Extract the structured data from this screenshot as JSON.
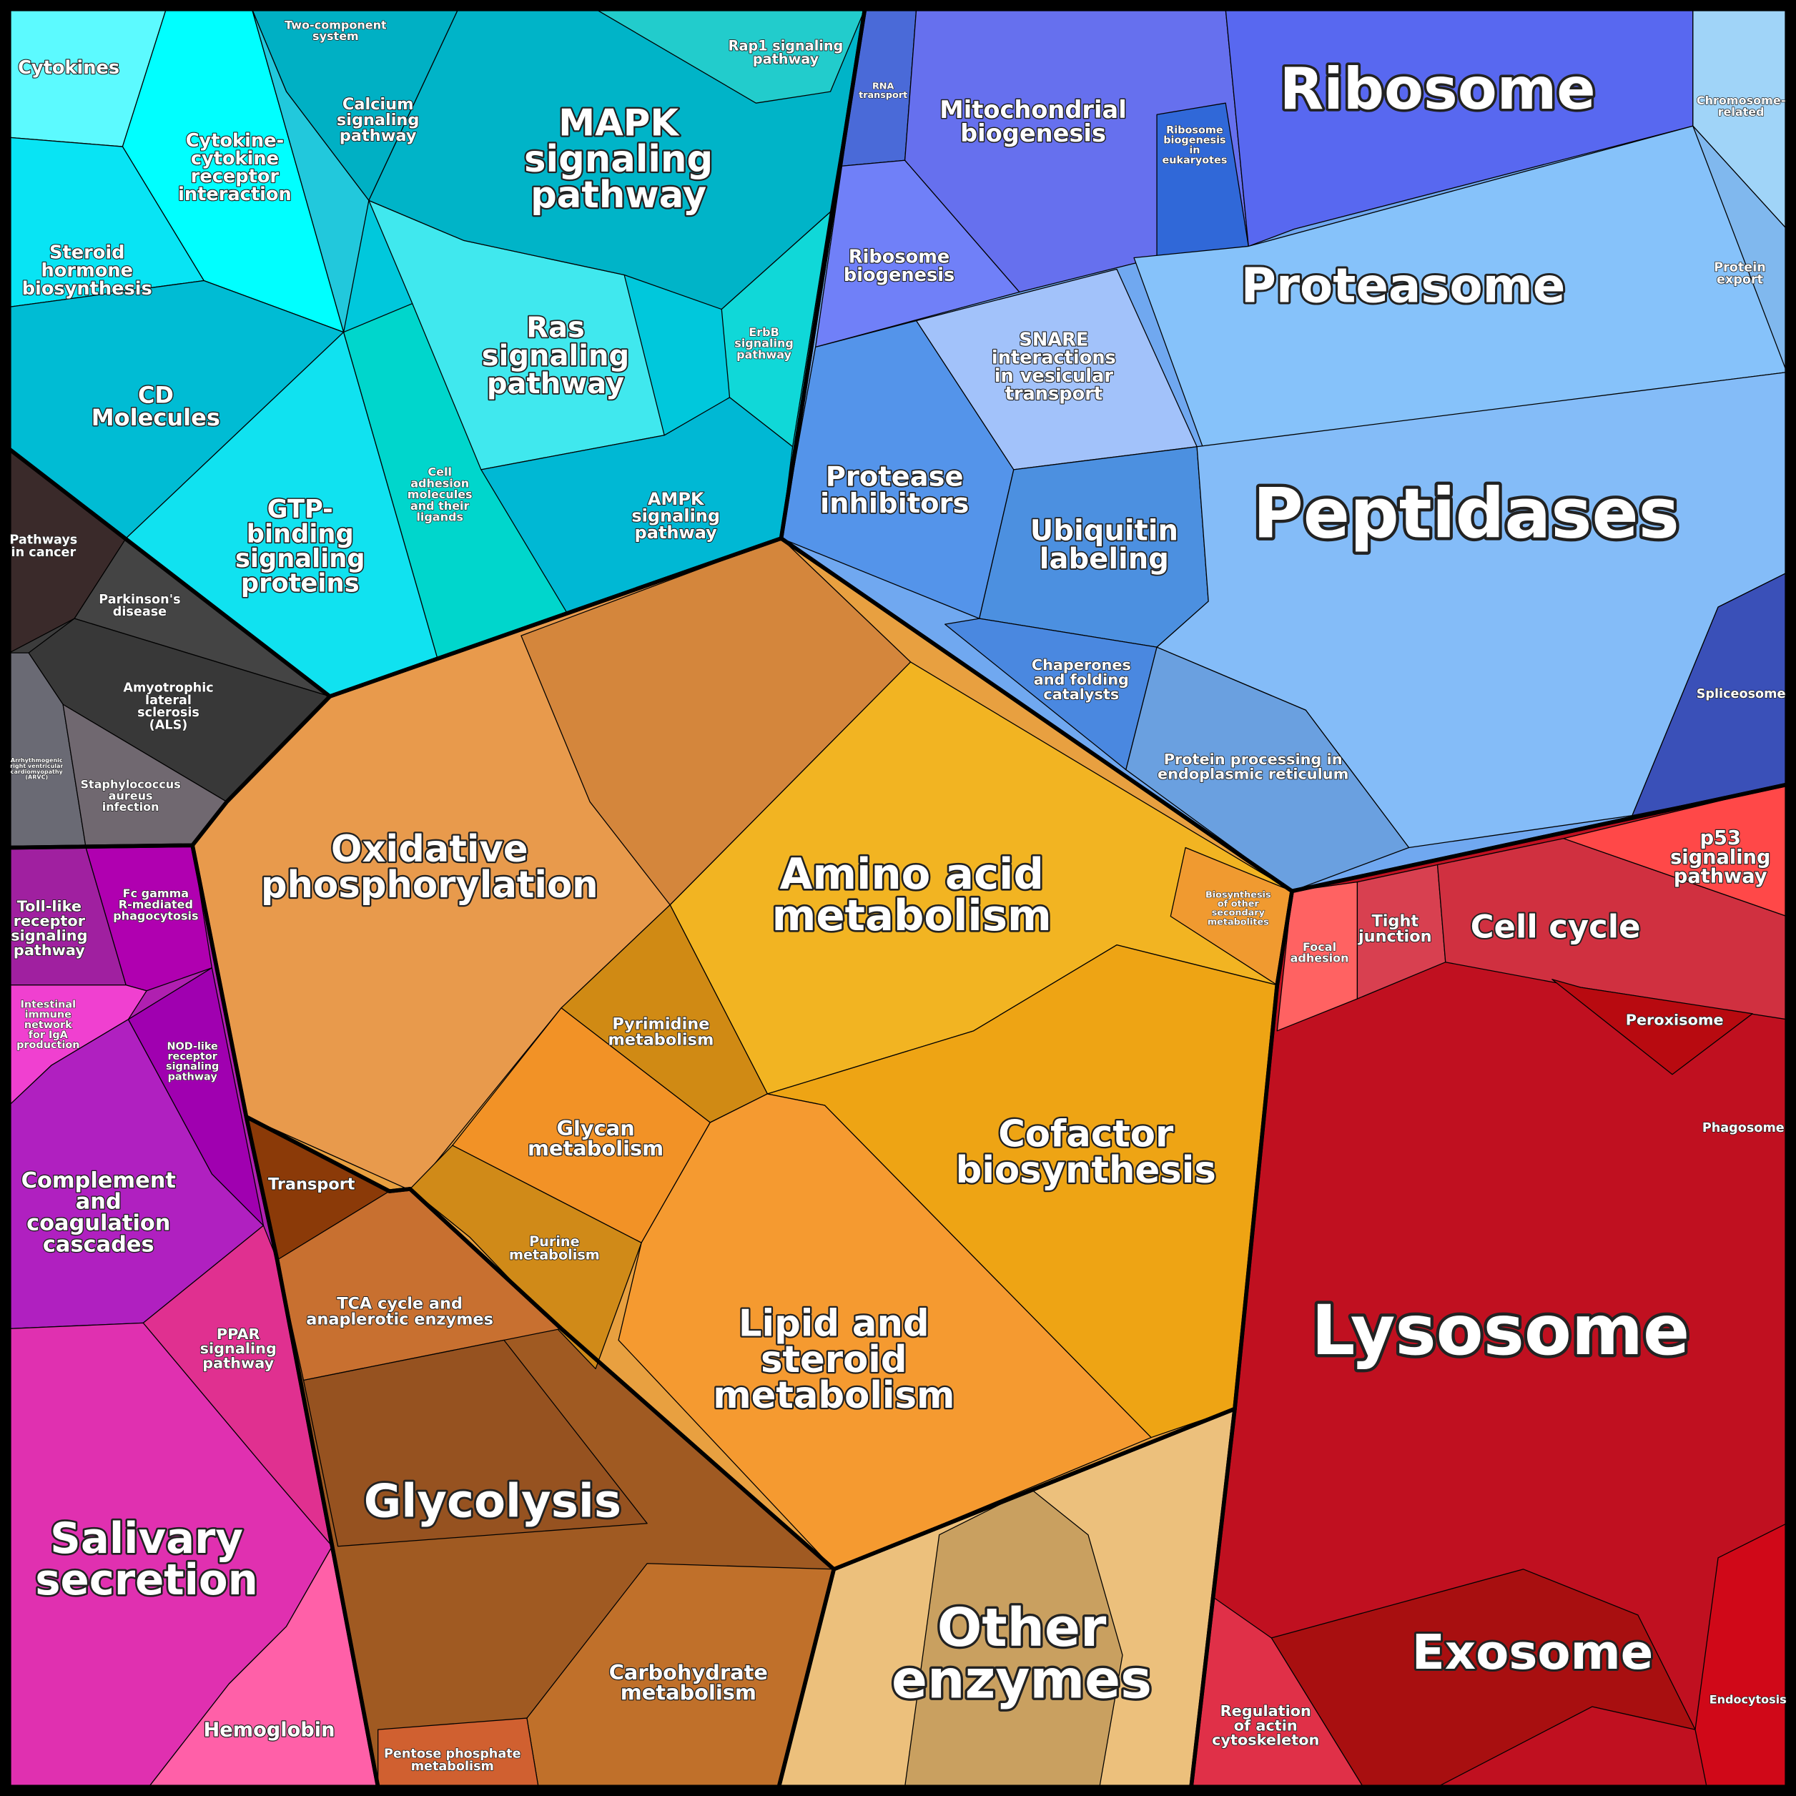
{
  "cells": [
    {
      "lines": [
        "Cytokines"
      ]
    },
    {
      "lines": [
        "Cytokine-",
        "cytokine",
        "receptor",
        "interaction"
      ]
    },
    {
      "lines": [
        "Two-component",
        "system"
      ]
    },
    {
      "lines": [
        "Calcium",
        "signaling",
        "pathway"
      ]
    },
    {
      "lines": [
        "MAPK",
        "signaling",
        "pathway"
      ]
    },
    {
      "lines": [
        "Rap1 signaling",
        "pathway"
      ]
    },
    {
      "lines": [
        "Steroid",
        "hormone",
        "biosynthesis"
      ]
    },
    {
      "lines": [
        "CD",
        "Molecules"
      ]
    },
    {
      "lines": [
        "Ras",
        "signaling",
        "pathway"
      ]
    },
    {
      "lines": [
        "ErbB",
        "signaling",
        "pathway"
      ]
    },
    {
      "lines": [
        "Cell",
        "adhesion",
        "molecules",
        "and their",
        "ligands"
      ]
    },
    {
      "lines": [
        "GTP-",
        "binding",
        "signaling",
        "proteins"
      ]
    },
    {
      "lines": [
        "AMPK",
        "signaling",
        "pathway"
      ]
    },
    {
      "lines": [
        "Pathways",
        "in cancer"
      ]
    },
    {
      "lines": [
        "Parkinson's",
        "disease"
      ]
    },
    {
      "lines": [
        "Amyotrophic",
        "lateral",
        "sclerosis",
        "(ALS)"
      ]
    },
    {
      "lines": [
        "Arrhythmogenic",
        "right ventricular",
        "cardiomyopathy",
        "(ARVC)"
      ]
    },
    {
      "lines": [
        "Staphylococcus",
        "aureus",
        "infection"
      ]
    },
    {
      "lines": [
        "RNA",
        "transport"
      ]
    },
    {
      "lines": [
        "Mitochondrial",
        "biogenesis"
      ]
    },
    {
      "lines": [
        "Ribosome",
        "biogenesis",
        "in",
        "eukaryotes"
      ]
    },
    {
      "lines": [
        "Ribosome"
      ]
    },
    {
      "lines": [
        "Chromosome-",
        "related"
      ]
    },
    {
      "lines": [
        "Ribosome",
        "biogenesis"
      ]
    },
    {
      "lines": [
        "Proteasome"
      ]
    },
    {
      "lines": [
        "Protein",
        "export"
      ]
    },
    {
      "lines": [
        "SNARE",
        "interactions",
        "in vesicular",
        "transport"
      ]
    },
    {
      "lines": [
        "Protease",
        "inhibitors"
      ]
    },
    {
      "lines": [
        "Ubiquitin",
        "labeling"
      ]
    },
    {
      "lines": [
        "Peptidases"
      ]
    },
    {
      "lines": [
        "Chaperones",
        "and folding",
        "catalysts"
      ]
    },
    {
      "lines": [
        "Spliceosome"
      ]
    },
    {
      "lines": [
        "Protein processing in",
        "endoplasmic reticulum"
      ]
    },
    {
      "lines": [
        "Oxidative",
        "phosphorylation"
      ]
    },
    {
      "lines": [
        "Amino acid",
        "metabolism"
      ]
    },
    {
      "lines": [
        "Biosynthesis",
        "of other",
        "secondary",
        "metabolites"
      ]
    },
    {
      "lines": [
        "Pyrimidine",
        "metabolism"
      ]
    },
    {
      "lines": [
        "Glycan",
        "metabolism"
      ]
    },
    {
      "lines": [
        "Cofactor",
        "biosynthesis"
      ]
    },
    {
      "lines": [
        "Transport"
      ]
    },
    {
      "lines": [
        "Purine",
        "metabolism"
      ]
    },
    {
      "lines": [
        "TCA cycle and",
        "anaplerotic enzymes"
      ]
    },
    {
      "lines": [
        "Lipid and",
        "steroid",
        "metabolism"
      ]
    },
    {
      "lines": [
        "Glycolysis"
      ]
    },
    {
      "lines": [
        "Carbohydrate",
        "metabolism"
      ]
    },
    {
      "lines": [
        "Pentose phosphate",
        "metabolism"
      ]
    },
    {
      "lines": [
        "Other",
        "enzymes"
      ]
    },
    {
      "lines": [
        "Toll-like",
        "receptor",
        "signaling",
        "pathway"
      ]
    },
    {
      "lines": [
        "Fc gamma",
        "R-mediated",
        "phagocytosis"
      ]
    },
    {
      "lines": [
        "Intestinal",
        "immune",
        "network",
        "for IgA",
        "production"
      ]
    },
    {
      "lines": [
        "NOD-like",
        "receptor",
        "signaling",
        "pathway"
      ]
    },
    {
      "lines": [
        "Complement",
        "and",
        "coagulation",
        "cascades"
      ]
    },
    {
      "lines": [
        "PPAR",
        "signaling",
        "pathway"
      ]
    },
    {
      "lines": [
        "Salivary",
        "secretion"
      ]
    },
    {
      "lines": [
        "Hemoglobin"
      ]
    },
    {
      "lines": [
        "p53",
        "signaling",
        "pathway"
      ]
    },
    {
      "lines": [
        "Focal",
        "adhesion"
      ]
    },
    {
      "lines": [
        "Tight",
        "junction"
      ]
    },
    {
      "lines": [
        "Cell cycle"
      ]
    },
    {
      "lines": [
        "Peroxisome"
      ]
    },
    {
      "lines": [
        "Phagosome"
      ]
    },
    {
      "lines": [
        "Lysosome"
      ]
    },
    {
      "lines": [
        "Exosome"
      ]
    },
    {
      "lines": [
        "Regulation",
        "of actin",
        "cytoskeleton"
      ]
    },
    {
      "lines": [
        "Endocytosis"
      ]
    }
  ]
}
